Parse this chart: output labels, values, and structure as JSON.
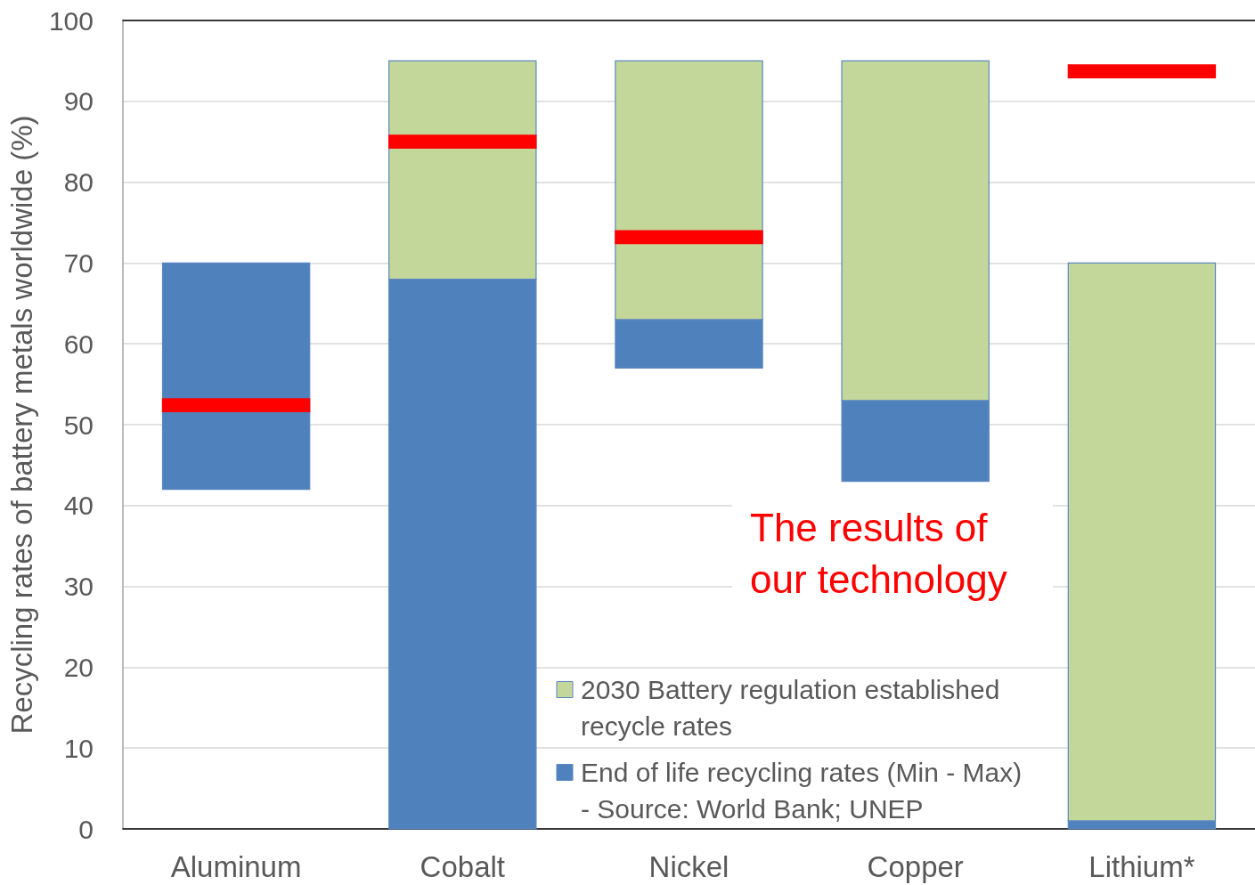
{
  "chart_data": {
    "type": "bar",
    "ylabel": "Recycling rates of battery metals worldwide (%)",
    "categories": [
      "Aluminum",
      "Cobalt",
      "Nickel",
      "Copper",
      "Lithium*"
    ],
    "series": [
      {
        "name": "End of life recycling rates (Min - Max) - Source: World Bank; UNEP",
        "color": "#4f81bd",
        "base": [
          42,
          0,
          57,
          43,
          0
        ],
        "values": [
          28,
          68,
          6,
          10,
          1
        ]
      },
      {
        "name": "2030 Battery regulation established recycle rates",
        "color": "#c4d79b",
        "base": [
          null,
          68,
          63,
          53,
          1
        ],
        "values": [
          null,
          27,
          32,
          42,
          69
        ]
      },
      {
        "color": "#ff0000",
        "base": [
          51.6,
          84.2,
          72.4,
          null,
          92.9
        ],
        "values": [
          1.6,
          1.6,
          1.6,
          null,
          1.6
        ]
      }
    ],
    "annotations": [
      "The results of our technology"
    ],
    "ylim": [
      0,
      100
    ],
    "yticks": [
      0,
      10,
      20,
      30,
      40,
      50,
      60,
      70,
      80,
      90,
      100
    ],
    "grid": "y",
    "legend": "bottom right"
  }
}
